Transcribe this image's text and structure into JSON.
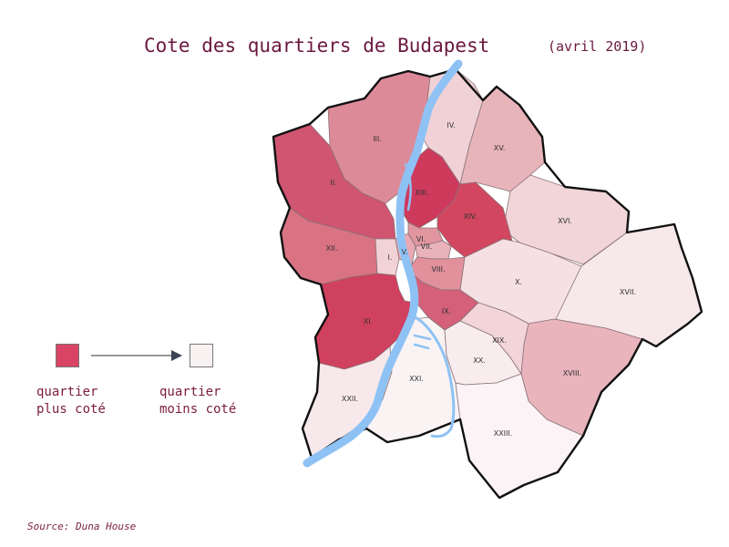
{
  "title": "Cote des quartiers de Budapest",
  "subtitle": "(avril 2019)",
  "source": "Source: Duna House",
  "legend": {
    "high_label_1": "quartier",
    "high_label_2": "plus coté",
    "low_label_1": "quartier",
    "low_label_2": "moins coté",
    "high_color": "#d94465",
    "low_color": "#f8f1f2"
  },
  "districts": [
    {
      "key": "I",
      "label": "I.",
      "level": 2,
      "color": "#f1d3d6"
    },
    {
      "key": "II",
      "label": "II.",
      "level": 5,
      "color": "#cf5570"
    },
    {
      "key": "III",
      "label": "III.",
      "level": 4,
      "color": "#dd8a98"
    },
    {
      "key": "IV",
      "label": "IV.",
      "level": 2,
      "color": "#f0d2d6"
    },
    {
      "key": "V",
      "label": "V.",
      "level": 3,
      "color": "#e9aab4"
    },
    {
      "key": "VI",
      "label": "VI.",
      "level": 4,
      "color": "#e1969f"
    },
    {
      "key": "VII",
      "label": "VII.",
      "level": 3,
      "color": "#eab3bb"
    },
    {
      "key": "VIII",
      "label": "VIII.",
      "level": 4,
      "color": "#e1909c"
    },
    {
      "key": "IX",
      "label": "IX.",
      "level": 5,
      "color": "#d4607a"
    },
    {
      "key": "X",
      "label": "X.",
      "level": 1,
      "color": "#f5e0e3"
    },
    {
      "key": "XI",
      "label": "XI.",
      "level": 6,
      "color": "#d0405f"
    },
    {
      "key": "XII",
      "label": "XII.",
      "level": 4,
      "color": "#d97383"
    },
    {
      "key": "XIII",
      "label": "XIII.",
      "level": 6,
      "color": "#cd3a5c"
    },
    {
      "key": "XIV",
      "label": "XIV.",
      "level": 6,
      "color": "#d2465f"
    },
    {
      "key": "XV",
      "label": "XV.",
      "level": 3,
      "color": "#e7b4ba"
    },
    {
      "key": "XVI",
      "label": "XVI.",
      "level": 2,
      "color": "#f2d5d8"
    },
    {
      "key": "XVII",
      "label": "XVII.",
      "level": 1,
      "color": "#f7e8ea"
    },
    {
      "key": "XVIII",
      "label": "XVIII.",
      "level": 3,
      "color": "#e9b4bc"
    },
    {
      "key": "XIX",
      "label": "XIX.",
      "level": 2,
      "color": "#f3d5d9"
    },
    {
      "key": "XX",
      "label": "XX.",
      "level": 1,
      "color": "#f8ecee"
    },
    {
      "key": "XXI",
      "label": "XXI.",
      "level": 1,
      "color": "#faf3f4"
    },
    {
      "key": "XXII",
      "label": "XXII.",
      "level": 1,
      "color": "#f7e9eb"
    },
    {
      "key": "XXIII",
      "label": "XXIII.",
      "level": 1,
      "color": "#fbf3f5"
    }
  ]
}
